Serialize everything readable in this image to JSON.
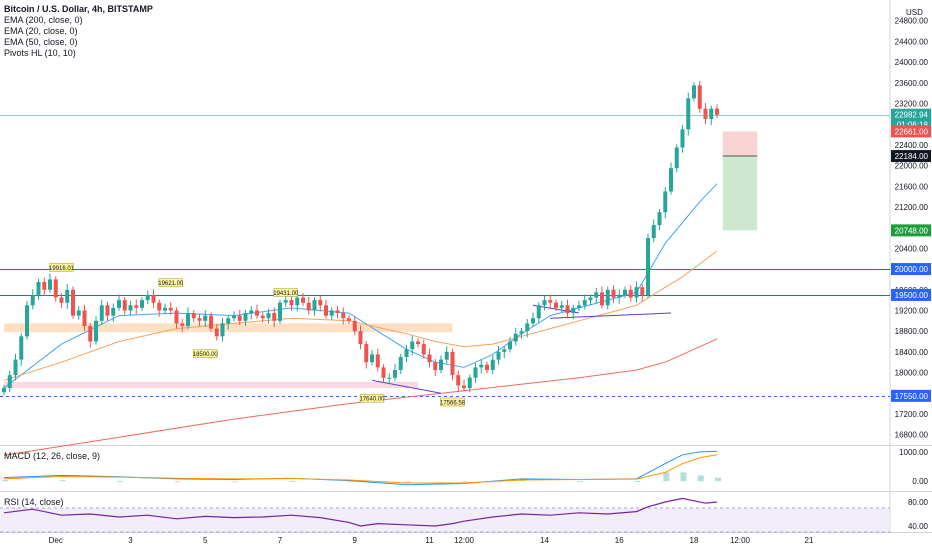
{
  "header": {
    "title": "Bitcoin / U.S. Dollar, 4h, BITSTAMP",
    "indicators": [
      "EMA (200, close, 0)",
      "EMA (20, close, 0)",
      "EMA (50, close, 0)",
      "Pivots HL (10, 10)"
    ],
    "currency": "USD"
  },
  "panes": {
    "macd_label": "MACD (12, 26, close, 9)",
    "rsi_label": "RSI (14, close)"
  },
  "colors": {
    "up": "#26a69a",
    "down": "#ef5350",
    "ema20": "#42a5f5",
    "ema50": "#f5a25d",
    "ema200": "#f06a5a",
    "hline": "#2962ff",
    "pivot_bg": "#fff59d",
    "rsi": "#7b1fa2"
  },
  "chart_data": [
    {
      "type": "candlestick",
      "title": "Bitcoin / U.S. Dollar, 4h, BITSTAMP",
      "ylim": [
        16600,
        25200
      ],
      "y_ticks": [
        16800,
        17200,
        17600,
        18000,
        18400,
        18800,
        19200,
        19600,
        20000,
        20400,
        20800,
        21200,
        21600,
        22000,
        22400,
        22800,
        23200,
        23600,
        24000,
        24400,
        24800
      ],
      "y_tick_labels": [
        "16800.00",
        "17200.00",
        "17600.00",
        "18000.00",
        "18400.00",
        "18800.00",
        "19200.00",
        "19600.00",
        "20000.00",
        "20400.00",
        "20800.00",
        "21200.00",
        "21600.00",
        "22000.00",
        "22400.00",
        "22800.00",
        "23200.00",
        "23600.00",
        "24000.00",
        "24400.00",
        "24800.00"
      ],
      "x_range": [
        0,
        125
      ],
      "x_ticks": [
        {
          "label": "Dec",
          "x": 9
        },
        {
          "label": "3",
          "x": 22
        },
        {
          "label": "5",
          "x": 35
        },
        {
          "label": "7",
          "x": 48
        },
        {
          "label": "9",
          "x": 61
        },
        {
          "label": "11",
          "x": 74
        },
        {
          "label": "12:00",
          "x": 80
        },
        {
          "label": "14",
          "x": 94
        },
        {
          "label": "16",
          "x": 107
        },
        {
          "label": "18",
          "x": 120
        },
        {
          "label": "12:00",
          "x": 128
        },
        {
          "label": "21",
          "x": 140
        }
      ],
      "closes": [
        17700,
        17950,
        18250,
        18700,
        19300,
        19500,
        19750,
        19600,
        19800,
        19450,
        19350,
        19600,
        19100,
        19200,
        18900,
        18600,
        19000,
        19300,
        19100,
        19250,
        19400,
        19200,
        19300,
        19250,
        19400,
        19500,
        19350,
        19200,
        19250,
        19200,
        18950,
        18900,
        19150,
        19050,
        19000,
        19100,
        18850,
        18700,
        18950,
        19050,
        19100,
        19000,
        19150,
        19200,
        19100,
        19050,
        19150,
        19000,
        19350,
        19400,
        19300,
        19450,
        19350,
        19200,
        19400,
        19300,
        19100,
        19200,
        19150,
        19050,
        19000,
        18800,
        18550,
        18200,
        18350,
        18100,
        17900,
        17900,
        18050,
        18300,
        18450,
        18600,
        18550,
        18350,
        18200,
        18050,
        18250,
        18400,
        17950,
        17750,
        17700,
        17900,
        18100,
        18150,
        18050,
        18250,
        18400,
        18450,
        18600,
        18750,
        18800,
        18950,
        19050,
        19300,
        19400,
        19350,
        19250,
        19300,
        19150,
        19250,
        19300,
        19400,
        19450,
        19550,
        19300,
        19600,
        19450,
        19500,
        19600,
        19450,
        19650,
        19500,
        20600,
        20850,
        21100,
        21500,
        21950,
        22350,
        22700,
        23300,
        23550,
        23100,
        22900,
        23100,
        22980
      ],
      "series": [
        {
          "name": "EMA (20, close, 0)",
          "x": [
            0,
            10,
            20,
            30,
            40,
            50,
            60,
            70,
            75,
            80,
            85,
            90,
            95,
            100,
            105,
            110,
            115,
            118,
            121,
            124
          ],
          "y": [
            17700,
            18550,
            19100,
            19150,
            19100,
            19250,
            19150,
            18450,
            18200,
            18100,
            18350,
            18750,
            19100,
            19250,
            19400,
            19550,
            20500,
            20900,
            21300,
            21650
          ]
        },
        {
          "name": "EMA (50, close, 0)",
          "x": [
            0,
            10,
            20,
            30,
            40,
            50,
            60,
            70,
            75,
            80,
            85,
            90,
            95,
            100,
            105,
            110,
            115,
            118,
            121,
            124
          ],
          "y": [
            17850,
            18200,
            18600,
            18850,
            18950,
            19050,
            19000,
            18750,
            18600,
            18500,
            18550,
            18700,
            18850,
            19000,
            19150,
            19300,
            19650,
            19850,
            20100,
            20350
          ]
        },
        {
          "name": "EMA (200, close, 0)",
          "x": [
            0,
            20,
            40,
            60,
            80,
            100,
            110,
            115,
            120,
            124
          ],
          "y": [
            16400,
            16750,
            17100,
            17400,
            17650,
            17900,
            18050,
            18200,
            18450,
            18650
          ]
        }
      ],
      "horizontal_levels": [
        {
          "value": 20000,
          "label": "20000.00",
          "style": "solid"
        },
        {
          "value": 19500,
          "label": "19500.00",
          "style": "solid"
        },
        {
          "value": 17550,
          "label": "17550.00",
          "style": "dashed"
        },
        {
          "value": 22982.94,
          "label": "22982.94",
          "style": "current"
        }
      ],
      "price_labels": [
        {
          "value": 22982.94,
          "label": "22982.94",
          "sub": "01:06:18",
          "color": "#26a69a"
        },
        {
          "value": 22661,
          "label": "22661.00",
          "color": "#ef5350"
        },
        {
          "value": 22184,
          "label": "22184.00",
          "color": "#131722"
        },
        {
          "value": 20748,
          "label": "20748.00",
          "color": "#1e9e3a"
        }
      ],
      "position_box": {
        "x_start": 125,
        "x_end": 131,
        "stop": 22661,
        "entry": 22184,
        "target": 20748
      },
      "pivots": [
        {
          "x": 10,
          "value": 19916,
          "label": "19916.01",
          "side": "high"
        },
        {
          "x": 29,
          "value": 19621,
          "label": "19621.00",
          "side": "high"
        },
        {
          "x": 35,
          "value": 18500,
          "label": "18500.00",
          "side": "low"
        },
        {
          "x": 49,
          "value": 19431,
          "label": "19431.00",
          "side": "high"
        },
        {
          "x": 64,
          "value": 17640,
          "label": "17640.00",
          "side": "low"
        },
        {
          "x": 78,
          "value": 17566,
          "label": "17566.58",
          "side": "low"
        }
      ],
      "zones": [
        {
          "from": 18780,
          "to": 18950,
          "x_start": 0,
          "x_end": 78,
          "color": "#ffcc99"
        },
        {
          "from": 17700,
          "to": 17820,
          "x_start": 0,
          "x_end": 72,
          "color": "#f8bbd0"
        }
      ],
      "trendlines": [
        {
          "x": [
            64,
            76
          ],
          "y": [
            17850,
            17600
          ]
        },
        {
          "x": [
            92,
            100
          ],
          "y": [
            19300,
            19150
          ]
        },
        {
          "x": [
            95,
            116
          ],
          "y": [
            19050,
            19150
          ]
        }
      ]
    },
    {
      "type": "bar",
      "title": "MACD (12, 26, close, 9)",
      "ylim": [
        -300,
        1200
      ],
      "y_ticks": [
        0,
        1000
      ],
      "y_tick_labels": [
        "0.00",
        "1000.00"
      ],
      "x": [
        0,
        10,
        20,
        30,
        40,
        50,
        60,
        70,
        80,
        90,
        100,
        110,
        115,
        118,
        121,
        124
      ],
      "series": [
        {
          "name": "MACD",
          "values": [
            120,
            200,
            150,
            80,
            60,
            100,
            20,
            -120,
            -80,
            80,
            60,
            80,
            600,
            900,
            1000,
            1020
          ]
        },
        {
          "name": "Signal",
          "values": [
            80,
            160,
            140,
            100,
            80,
            90,
            40,
            -60,
            -60,
            40,
            60,
            70,
            300,
            600,
            800,
            900
          ]
        }
      ]
    },
    {
      "type": "line",
      "title": "RSI (14, close)",
      "ylim": [
        30,
        95
      ],
      "y_ticks": [
        40,
        80
      ],
      "y_tick_labels": [
        "40.00",
        "80.00"
      ],
      "band": [
        30,
        70
      ],
      "x": [
        0,
        5,
        10,
        15,
        20,
        25,
        30,
        35,
        40,
        45,
        50,
        55,
        60,
        62,
        65,
        70,
        75,
        78,
        80,
        85,
        90,
        95,
        100,
        105,
        110,
        112,
        115,
        118,
        120,
        122,
        124
      ],
      "values": [
        62,
        68,
        58,
        60,
        55,
        58,
        52,
        56,
        54,
        55,
        58,
        54,
        46,
        40,
        44,
        42,
        40,
        44,
        48,
        55,
        60,
        58,
        62,
        60,
        64,
        72,
        80,
        86,
        82,
        78,
        80
      ]
    }
  ]
}
